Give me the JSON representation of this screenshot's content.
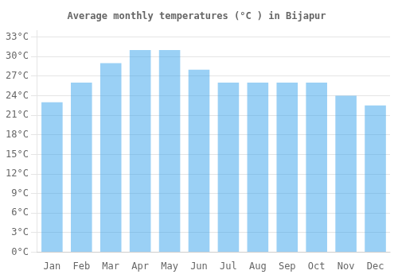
{
  "chart_data": {
    "type": "bar",
    "title": "Average monthly temperatures (°C ) in Bijapur",
    "categories": [
      "Jan",
      "Feb",
      "Mar",
      "Apr",
      "May",
      "Jun",
      "Jul",
      "Aug",
      "Sep",
      "Oct",
      "Nov",
      "Dec"
    ],
    "values": [
      23,
      26,
      29,
      31,
      31,
      28,
      26,
      26,
      26,
      26,
      24,
      22.5
    ],
    "ylim": [
      0,
      34
    ],
    "yticks": [
      {
        "value": 0,
        "label": "0°C"
      },
      {
        "value": 3,
        "label": "3°C"
      },
      {
        "value": 6,
        "label": "6°C"
      },
      {
        "value": 9,
        "label": "9°C"
      },
      {
        "value": 12,
        "label": "12°C"
      },
      {
        "value": 15,
        "label": "15°C"
      },
      {
        "value": 18,
        "label": "18°C"
      },
      {
        "value": 21,
        "label": "21°C"
      },
      {
        "value": 24,
        "label": "24°C"
      },
      {
        "value": 27,
        "label": "27°C"
      },
      {
        "value": 30,
        "label": "30°C"
      },
      {
        "value": 33,
        "label": "33°C"
      }
    ],
    "grid": true
  }
}
